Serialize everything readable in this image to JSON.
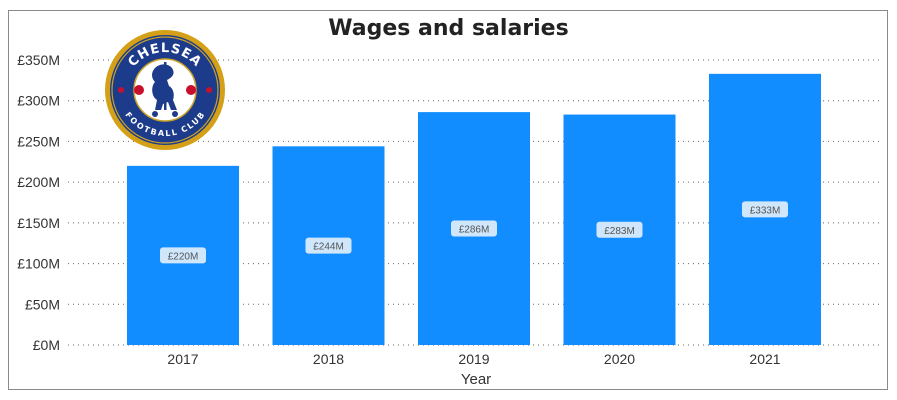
{
  "chart_data": {
    "type": "bar",
    "title": "Wages and salaries",
    "xlabel": "Year",
    "ylabel": "",
    "categories": [
      "2017",
      "2018",
      "2019",
      "2020",
      "2021"
    ],
    "values": [
      220,
      244,
      286,
      283,
      333
    ],
    "data_labels": [
      "£220M",
      "£244M",
      "£286M",
      "£283M",
      "£333M"
    ],
    "ylim": [
      0,
      350
    ],
    "yticks": [
      0,
      50,
      100,
      150,
      200,
      250,
      300,
      350
    ],
    "ytick_labels": [
      "£0M",
      "£50M",
      "£100M",
      "£150M",
      "£200M",
      "£250M",
      "£300M",
      "£350M"
    ],
    "grid": "horizontal-dotted",
    "bar_color": "#118DFF",
    "logo": {
      "text_top": "CHELSEA",
      "text_bottom": "FOOTBALL CLUB"
    }
  }
}
